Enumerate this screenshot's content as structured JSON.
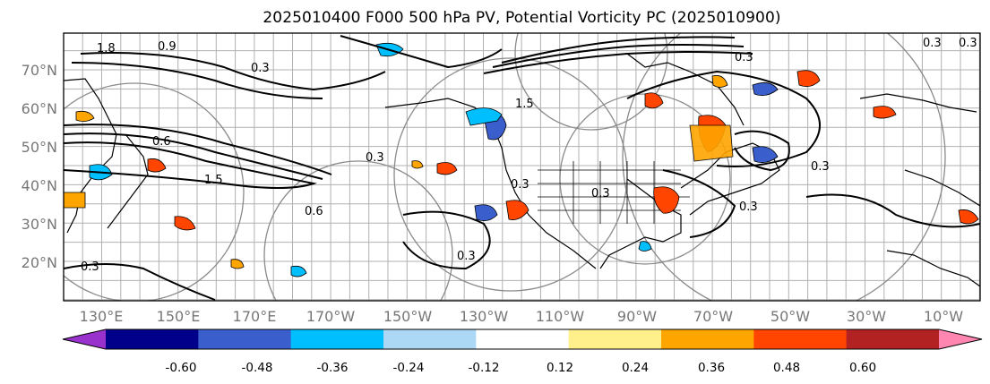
{
  "title": "2025010400 F000 500 hPa PV, Potential Vorticity PC (2025010900)",
  "map": {
    "lat_labels": [
      "70°N",
      "60°N",
      "50°N",
      "40°N",
      "30°N",
      "20°N"
    ],
    "lon_labels": [
      "130°E",
      "150°E",
      "170°E",
      "170°W",
      "150°W",
      "130°W",
      "110°W",
      "90°W",
      "70°W",
      "50°W",
      "30°W",
      "10°W"
    ],
    "contour_labels": [
      "1.8",
      "0.9",
      "0.3",
      "0.6",
      "1.5",
      "0.3",
      "0.6",
      "0.3",
      "0.3",
      "0.3",
      "0.3",
      "0.3",
      "1.5",
      "0.3",
      "0.3",
      "0.3",
      "0.3"
    ]
  },
  "colorbar": {
    "ticks": [
      "-0.60",
      "-0.48",
      "-0.36",
      "-0.24",
      "-0.12",
      "0.12",
      "0.24",
      "0.36",
      "0.48",
      "0.60"
    ],
    "colors": [
      "#9932cc",
      "#00008b",
      "#3a5fcd",
      "#00bfff",
      "#add8f5",
      "#ffffff",
      "#fff08c",
      "#ffa500",
      "#ff4500",
      "#b22222",
      "#ff86b0"
    ]
  }
}
